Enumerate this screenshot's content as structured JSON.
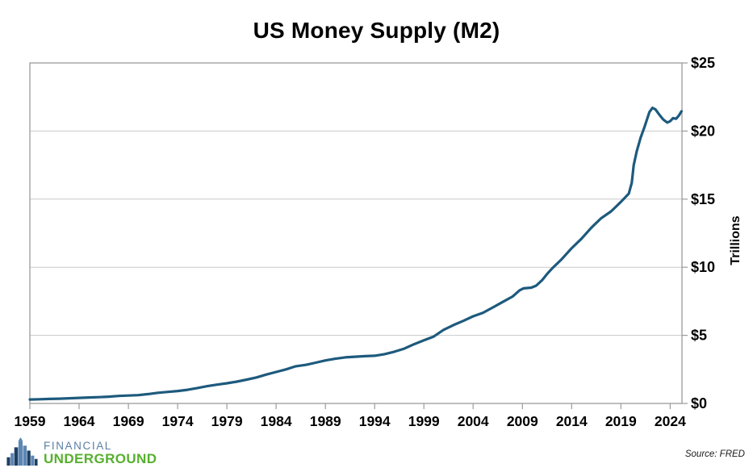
{
  "footer": {
    "logo": {
      "line1": "FINANCIAL",
      "line2": "UNDERGROUND"
    },
    "source": "Source: FRED"
  },
  "colors": {
    "line": "#1d5a7d",
    "grid": "#c9c9c9",
    "frame": "#9b9b9b",
    "logo_financial": "#5b7fa3",
    "logo_underground": "#56b02e",
    "logo_icon_dark": "#1e3e63",
    "logo_icon_light": "#5c86b4"
  },
  "chart_data": {
    "type": "line",
    "title": "US Money Supply (M2)",
    "xlabel": "",
    "ylabel": "Trillions",
    "xlim": [
      1959,
      2025.2
    ],
    "ylim": [
      0,
      25
    ],
    "grid": "horizontal",
    "x_ticks": [
      1959,
      1964,
      1969,
      1974,
      1979,
      1984,
      1989,
      1994,
      1999,
      2004,
      2009,
      2014,
      2019,
      2024
    ],
    "y_ticks": [
      {
        "value": 0,
        "label": "$0"
      },
      {
        "value": 5,
        "label": "$5"
      },
      {
        "value": 10,
        "label": "$10"
      },
      {
        "value": 15,
        "label": "$15"
      },
      {
        "value": 20,
        "label": "$20"
      },
      {
        "value": 25,
        "label": "$25"
      }
    ],
    "series": [
      {
        "points": [
          [
            1959,
            0.29
          ],
          [
            1960,
            0.31
          ],
          [
            1961,
            0.33
          ],
          [
            1962,
            0.35
          ],
          [
            1963,
            0.38
          ],
          [
            1964,
            0.41
          ],
          [
            1965,
            0.44
          ],
          [
            1966,
            0.46
          ],
          [
            1967,
            0.5
          ],
          [
            1968,
            0.55
          ],
          [
            1969,
            0.58
          ],
          [
            1970,
            0.61
          ],
          [
            1971,
            0.69
          ],
          [
            1972,
            0.78
          ],
          [
            1973,
            0.85
          ],
          [
            1974,
            0.91
          ],
          [
            1975,
            1.0
          ],
          [
            1976,
            1.13
          ],
          [
            1977,
            1.27
          ],
          [
            1978,
            1.38
          ],
          [
            1979,
            1.48
          ],
          [
            1980,
            1.6
          ],
          [
            1981,
            1.75
          ],
          [
            1982,
            1.91
          ],
          [
            1983,
            2.12
          ],
          [
            1984,
            2.31
          ],
          [
            1985,
            2.5
          ],
          [
            1986,
            2.73
          ],
          [
            1987,
            2.83
          ],
          [
            1988,
            2.99
          ],
          [
            1989,
            3.16
          ],
          [
            1990,
            3.28
          ],
          [
            1991,
            3.38
          ],
          [
            1992,
            3.43
          ],
          [
            1993,
            3.47
          ],
          [
            1994,
            3.5
          ],
          [
            1995,
            3.62
          ],
          [
            1996,
            3.8
          ],
          [
            1997,
            4.02
          ],
          [
            1998,
            4.35
          ],
          [
            1999,
            4.63
          ],
          [
            2000,
            4.91
          ],
          [
            2001,
            5.4
          ],
          [
            2002,
            5.75
          ],
          [
            2003,
            6.06
          ],
          [
            2004,
            6.4
          ],
          [
            2005,
            6.66
          ],
          [
            2006,
            7.05
          ],
          [
            2007,
            7.45
          ],
          [
            2008,
            7.85
          ],
          [
            2008.7,
            8.3
          ],
          [
            2009.1,
            8.45
          ],
          [
            2009.9,
            8.5
          ],
          [
            2010.4,
            8.65
          ],
          [
            2011,
            9.05
          ],
          [
            2011.5,
            9.5
          ],
          [
            2012,
            9.9
          ],
          [
            2013,
            10.6
          ],
          [
            2014,
            11.4
          ],
          [
            2015,
            12.1
          ],
          [
            2016,
            12.9
          ],
          [
            2017,
            13.6
          ],
          [
            2018,
            14.1
          ],
          [
            2019,
            14.8
          ],
          [
            2019.8,
            15.4
          ],
          [
            2020.1,
            16.2
          ],
          [
            2020.3,
            17.5
          ],
          [
            2020.6,
            18.5
          ],
          [
            2021,
            19.5
          ],
          [
            2021.4,
            20.3
          ],
          [
            2021.9,
            21.4
          ],
          [
            2022.2,
            21.7
          ],
          [
            2022.5,
            21.6
          ],
          [
            2022.9,
            21.2
          ],
          [
            2023.3,
            20.85
          ],
          [
            2023.7,
            20.62
          ],
          [
            2024,
            20.72
          ],
          [
            2024.3,
            20.95
          ],
          [
            2024.6,
            20.9
          ],
          [
            2024.9,
            21.15
          ],
          [
            2025.15,
            21.45
          ]
        ]
      }
    ]
  }
}
